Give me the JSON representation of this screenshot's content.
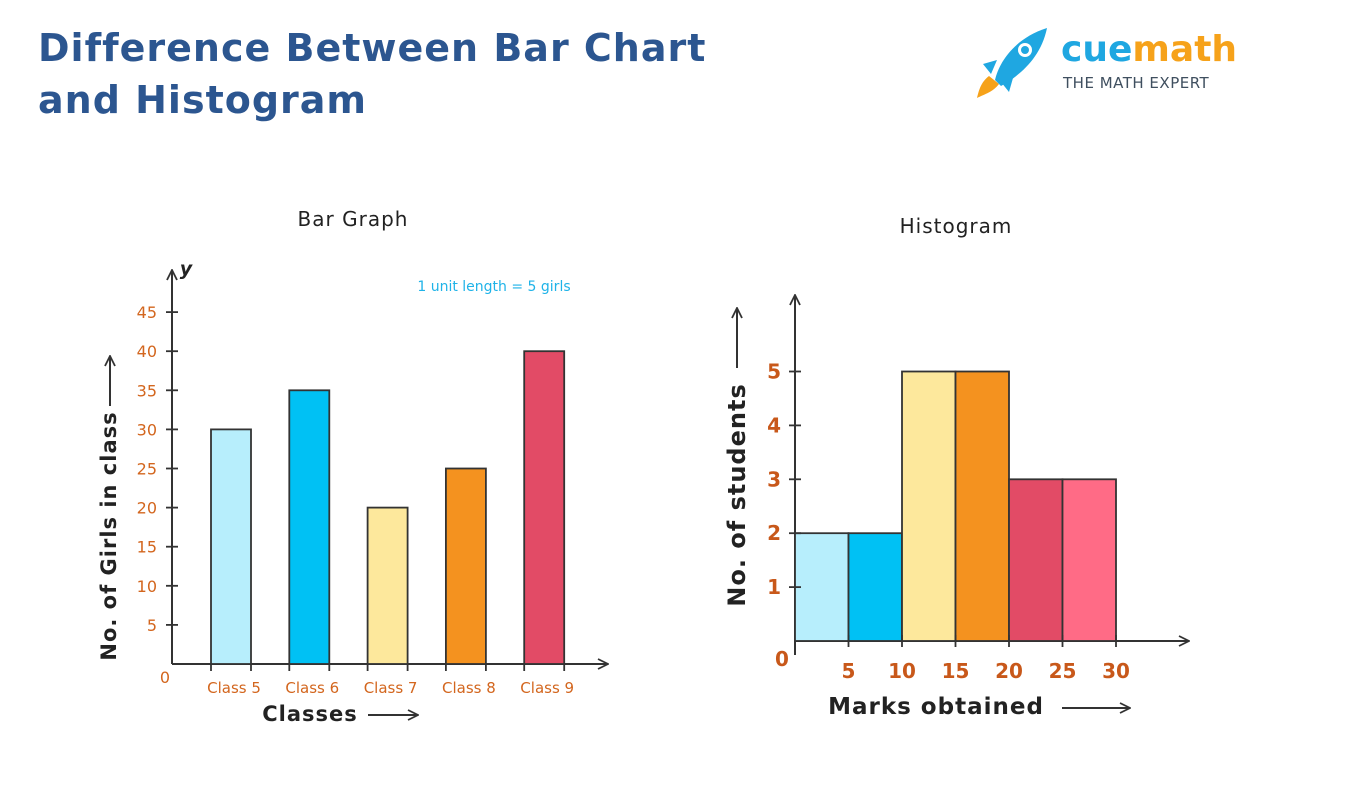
{
  "page": {
    "title_line1": "Difference Between Bar Chart",
    "title_line2": "and Histogram"
  },
  "logo": {
    "name_part1": "cue",
    "name_part2": "math",
    "tagline": "THE MATH EXPERT",
    "icon": "rocket-icon",
    "colors": {
      "blue": "#1fa7e1",
      "orange": "#f6a21a"
    }
  },
  "chart_data": [
    {
      "type": "bar",
      "title": "Bar Graph",
      "note": "1 unit length =  5 girls",
      "xlabel": "Classes",
      "ylabel": "No. of Girls in class",
      "y_axis_letter": "y",
      "origin_label": "0",
      "ylim": [
        0,
        45
      ],
      "yticks": [
        5,
        10,
        15,
        20,
        25,
        30,
        35,
        40,
        45
      ],
      "categories": [
        "Class 5",
        "Class 6",
        "Class 7",
        "Class 8",
        "Class 9"
      ],
      "values": [
        30,
        35,
        20,
        25,
        40
      ],
      "colors": [
        "#b7eefc",
        "#00c1f4",
        "#fde89c",
        "#f4921f",
        "#e24b66"
      ],
      "grid": false,
      "legend": "none"
    },
    {
      "type": "bar",
      "subtype": "histogram",
      "title": "Histogram",
      "xlabel": "Marks obtained",
      "ylabel": "No. of students",
      "origin_label": "0",
      "ylim": [
        0,
        5
      ],
      "yticks": [
        1,
        2,
        3,
        4,
        5
      ],
      "xticks": [
        5,
        10,
        15,
        20,
        25,
        30
      ],
      "bins": [
        {
          "from": 0,
          "to": 5,
          "value": 2
        },
        {
          "from": 5,
          "to": 10,
          "value": 2
        },
        {
          "from": 10,
          "to": 15,
          "value": 5
        },
        {
          "from": 15,
          "to": 20,
          "value": 5
        },
        {
          "from": 20,
          "to": 25,
          "value": 3
        },
        {
          "from": 25,
          "to": 30,
          "value": 3
        }
      ],
      "colors": [
        "#b7eefc",
        "#00c1f4",
        "#fde89c",
        "#f4921f",
        "#e24b66",
        "#ff6b86"
      ],
      "grid": false,
      "legend": "none"
    }
  ]
}
